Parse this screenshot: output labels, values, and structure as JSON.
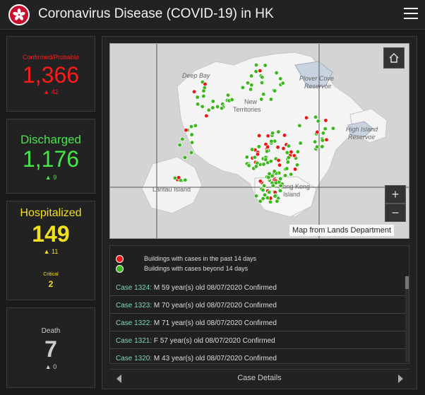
{
  "header": {
    "title": "Coronavirus Disease (COVID-19) in HK"
  },
  "stats": {
    "confirmed": {
      "label": "Confirmed/Probable",
      "value": "1,366",
      "delta": "▲ 42",
      "color": "#ff1a1a"
    },
    "discharged": {
      "label": "Discharged",
      "value": "1,176",
      "delta": "▲ 9",
      "color": "#46e64a"
    },
    "hospitalized": {
      "label": "Hospitalized",
      "value": "149",
      "delta": "▲ 11",
      "critical_label": "Critical",
      "critical_value": "2",
      "color": "#f0e020"
    },
    "death": {
      "label": "Death",
      "value": "7",
      "delta": "▲ 0",
      "color": "#cccccc"
    }
  },
  "map": {
    "labels": [
      "Deep Bay",
      "Plover Cove",
      "Reservoir",
      "New",
      "Territories",
      "High Island",
      "Reservoir",
      "Lantau Island",
      "Hong Kong",
      "Island"
    ],
    "attribution": "Map from Lands Department",
    "zoom_in": "+",
    "zoom_out": "−"
  },
  "legend": [
    {
      "color": "#e81919",
      "label": "Buildings with cases in the past 14 days"
    },
    {
      "color": "#3cb81e",
      "label": "Buildings with cases beyond 14 days"
    }
  ],
  "cases": [
    {
      "id": "Case 1324:",
      "detail": " M  59 year(s) old  08/07/2020 Confirmed"
    },
    {
      "id": "Case 1323:",
      "detail": " M  70 year(s) old  08/07/2020 Confirmed"
    },
    {
      "id": "Case 1322:",
      "detail": " M  71 year(s) old  08/07/2020 Confirmed"
    },
    {
      "id": "Case 1321:",
      "detail": " F  57 year(s) old  08/07/2020 Confirmed"
    },
    {
      "id": "Case 1320:",
      "detail": " M  43 year(s) old  08/07/2020 Confirmed"
    }
  ],
  "footer": {
    "title": "Case Details"
  }
}
